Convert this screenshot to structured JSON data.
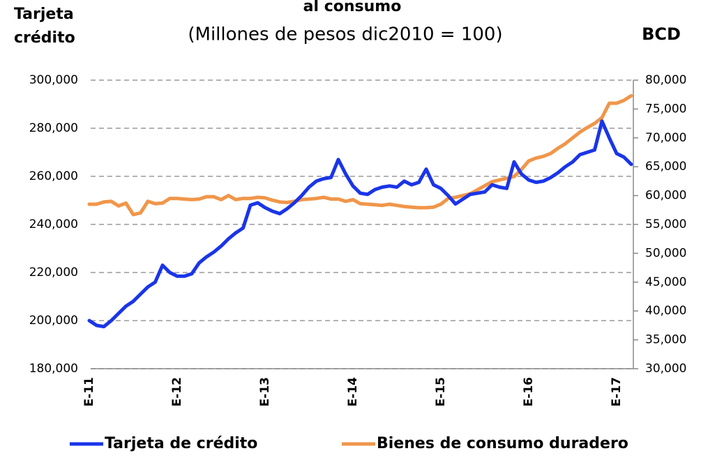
{
  "chart_data": {
    "type": "line",
    "title": "al consumo",
    "subtitle": "(Millones de pesos dic2010 = 100)",
    "y_label": "Tarjeta crédito",
    "y2_label": "BCD",
    "categories": [
      "E-11",
      null,
      null,
      null,
      null,
      null,
      null,
      null,
      null,
      null,
      null,
      null,
      "E-12",
      null,
      null,
      null,
      null,
      null,
      null,
      null,
      null,
      null,
      null,
      null,
      "E-13",
      null,
      null,
      null,
      null,
      null,
      null,
      null,
      null,
      null,
      null,
      null,
      "E-14",
      null,
      null,
      null,
      null,
      null,
      null,
      null,
      null,
      null,
      null,
      null,
      "E-15",
      null,
      null,
      null,
      null,
      null,
      null,
      null,
      null,
      null,
      null,
      null,
      "E-16",
      null,
      null,
      null,
      null,
      null,
      null,
      null,
      null,
      null,
      null,
      null,
      "E-17",
      null,
      null
    ],
    "series": [
      {
        "name": "Tarjeta de crédito",
        "color": "#1a35e8",
        "axis": "y",
        "values": [
          200000,
          198000,
          197500,
          200000,
          203000,
          206000,
          208000,
          211000,
          214000,
          216000,
          223000,
          220000,
          218500,
          218500,
          219500,
          224000,
          226500,
          228500,
          231000,
          234000,
          236500,
          238500,
          248000,
          249000,
          247000,
          245500,
          244500,
          246500,
          249000,
          252000,
          255500,
          258000,
          259000,
          259500,
          267000,
          261000,
          256000,
          253000,
          252500,
          254500,
          255500,
          256000,
          255500,
          258000,
          256500,
          257500,
          263000,
          256500,
          255000,
          252000,
          248500,
          250500,
          252500,
          253000,
          253500,
          256500,
          255500,
          255000,
          266000,
          261000,
          258500,
          257500,
          258000,
          259500,
          261500,
          264000,
          266000,
          269000,
          270000,
          271000,
          283000,
          276000,
          269500,
          268000,
          265000
        ]
      },
      {
        "name": "Bienes de consumo duradero",
        "color": "#f0964a",
        "axis": "y2",
        "values": [
          58500,
          58500,
          58900,
          59000,
          58200,
          58700,
          56700,
          57000,
          59000,
          58600,
          58700,
          59500,
          59500,
          59400,
          59300,
          59400,
          59800,
          59800,
          59300,
          60000,
          59300,
          59500,
          59500,
          59700,
          59600,
          59200,
          58900,
          58800,
          59000,
          59300,
          59400,
          59500,
          59700,
          59400,
          59400,
          59000,
          59300,
          58600,
          58500,
          58400,
          58300,
          58500,
          58300,
          58100,
          58000,
          57900,
          57900,
          58000,
          58500,
          59500,
          59700,
          60000,
          60300,
          61000,
          61700,
          62400,
          62700,
          63000,
          63300,
          64500,
          66000,
          66500,
          66800,
          67300,
          68200,
          69000,
          70000,
          71000,
          71800,
          72500,
          73500,
          76000,
          76000,
          76500,
          77300
        ]
      }
    ],
    "ylim": [
      180000,
      300000
    ],
    "yticks": [
      {
        "value": 180000,
        "label": "180,000"
      },
      {
        "value": 200000,
        "label": "200,000"
      },
      {
        "value": 220000,
        "label": "220,000"
      },
      {
        "value": 240000,
        "label": "240,000"
      },
      {
        "value": 260000,
        "label": "260,000"
      },
      {
        "value": 280000,
        "label": "280,000"
      },
      {
        "value": 300000,
        "label": "300,000"
      }
    ],
    "y2lim": [
      30000,
      80000
    ],
    "y2ticks": [
      {
        "value": 30000,
        "label": "30,000"
      },
      {
        "value": 35000,
        "label": "35,000"
      },
      {
        "value": 40000,
        "label": "40,000"
      },
      {
        "value": 45000,
        "label": "45,000"
      },
      {
        "value": 50000,
        "label": "50,000"
      },
      {
        "value": 55000,
        "label": "55,000"
      },
      {
        "value": 60000,
        "label": "60,000"
      },
      {
        "value": 65000,
        "label": "65,000"
      },
      {
        "value": 70000,
        "label": "70,000"
      },
      {
        "value": 75000,
        "label": "75,000"
      },
      {
        "value": 80000,
        "label": "80,000"
      }
    ],
    "grid": true
  }
}
